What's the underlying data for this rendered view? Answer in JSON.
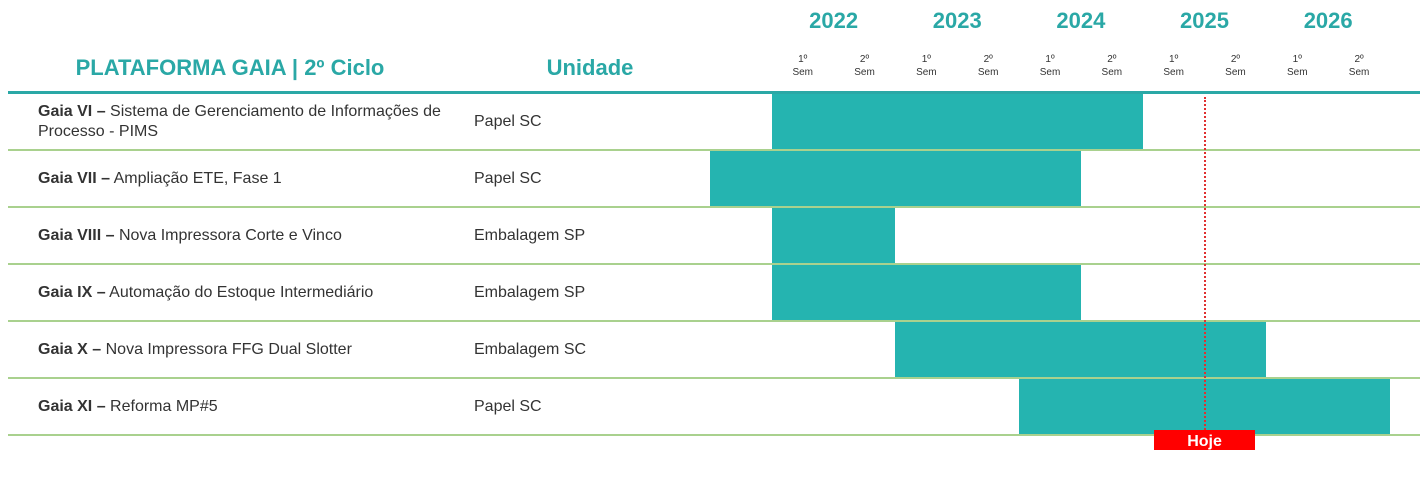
{
  "chart_data": {
    "type": "gantt",
    "title": "PLATAFORMA GAIA | 2º Ciclo",
    "unit_header": "Unidade",
    "years": [
      2022,
      2023,
      2024,
      2025,
      2026
    ],
    "semesters": [
      "1º",
      "2º"
    ],
    "semester_word": "Sem",
    "xlim": [
      2021.5,
      2027
    ],
    "color": "#25b4b0",
    "tasks": [
      {
        "prefix": "Gaia VI –",
        "name": "Sistema de Gerenciamento de Informações de Processo - PIMS",
        "unit": "Papel SC",
        "start": 2022,
        "end": 2025
      },
      {
        "prefix": "Gaia VII –",
        "name": "Ampliação ETE, Fase 1",
        "unit": "Papel SC",
        "start": 2021.5,
        "end": 2024.5
      },
      {
        "prefix": "Gaia VIII –",
        "name": "Nova Impressora Corte e Vinco",
        "unit": "Embalagem SP",
        "start": 2022,
        "end": 2023
      },
      {
        "prefix": "Gaia IX –",
        "name": "Automação do Estoque Intermediário",
        "unit": "Embalagem SP",
        "start": 2022,
        "end": 2024.5
      },
      {
        "prefix": "Gaia X –",
        "name": "Nova Impressora FFG Dual Slotter",
        "unit": "Embalagem SC",
        "start": 2023,
        "end": 2026
      },
      {
        "prefix": "Gaia XI –",
        "name": "Reforma MP#5",
        "unit": "Papel SC",
        "start": 2024,
        "end": 2027
      }
    ],
    "today": 2025.5,
    "today_label": "Hoje"
  }
}
